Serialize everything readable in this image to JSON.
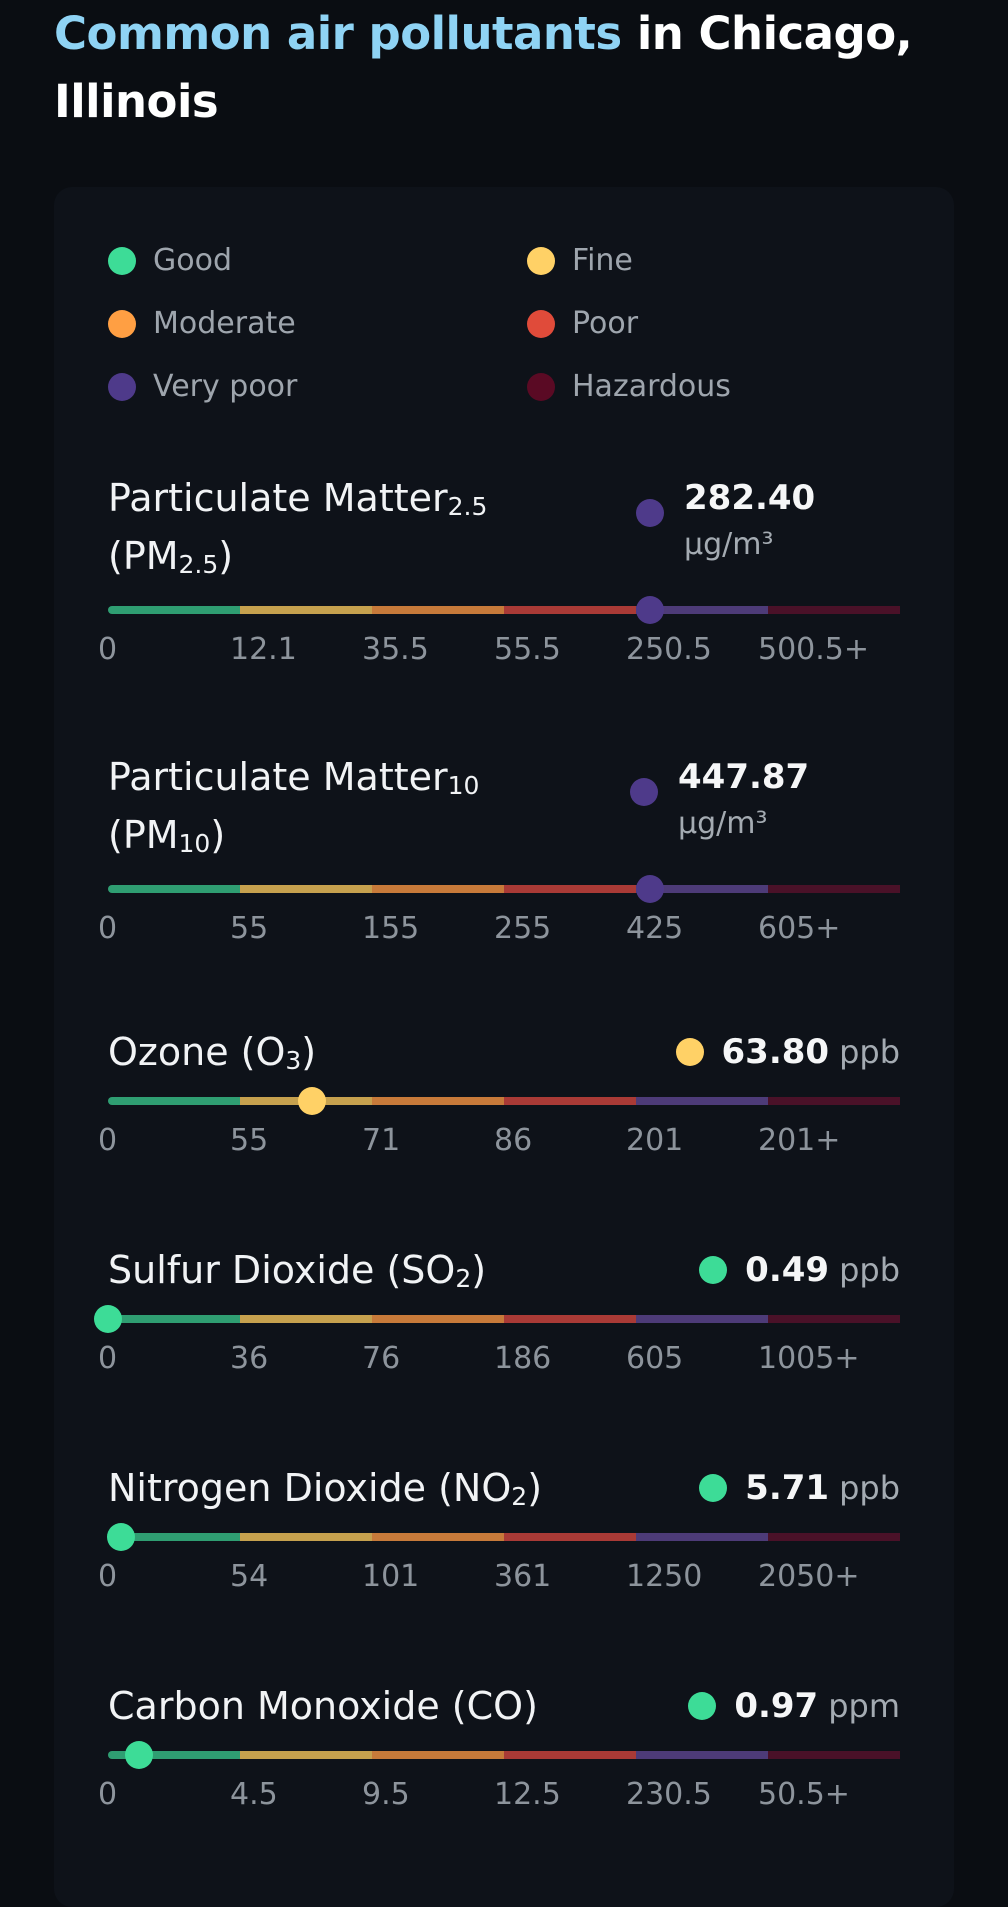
{
  "title": {
    "highlight": "Common air pollutants",
    "rest": " in Chicago, Illinois"
  },
  "colors": {
    "good": "#3ddc97",
    "fine": "#ffd166",
    "moderate": "#ff9f43",
    "poor": "#e04b3a",
    "very_poor": "#4e3a8a",
    "hazardous": "#5a0a24",
    "seg_good": "#2f9e72",
    "seg_fine": "#c6a14e",
    "seg_moderate": "#c77a3a",
    "seg_poor": "#a93a36",
    "seg_very_poor": "#4d3b78",
    "seg_hazardous": "#4a1128"
  },
  "legend": [
    {
      "label": "Good",
      "color": "#3ddc97"
    },
    {
      "label": "Fine",
      "color": "#ffd166"
    },
    {
      "label": "Moderate",
      "color": "#ff9f43"
    },
    {
      "label": "Poor",
      "color": "#e04b3a"
    },
    {
      "label": "Very poor",
      "color": "#4e3a8a"
    },
    {
      "label": "Hazardous",
      "color": "#5a0a24"
    }
  ],
  "pollutants": [
    {
      "name": "Particulate Matter",
      "sub": "2.5",
      "abbr": "(PM",
      "abbr_sub": "2.5",
      "abbr_end": ")",
      "value": "282.40",
      "unit": "µg/m³",
      "level_color": "#4e3a8a",
      "position_fraction": 0.684,
      "ticks": [
        "0",
        "12.1",
        "35.5",
        "55.5",
        "250.5",
        "500.5+"
      ]
    },
    {
      "name": "Particulate Matter",
      "sub": "10",
      "abbr": "(PM",
      "abbr_sub": "10",
      "abbr_end": ")",
      "value": "447.87",
      "unit": "µg/m³",
      "level_color": "#4e3a8a",
      "position_fraction": 0.684,
      "ticks": [
        "0",
        "55",
        "155",
        "255",
        "425",
        "605+"
      ]
    },
    {
      "name": "Ozone (O",
      "sub": "3",
      "name_end": ")",
      "value": "63.80",
      "unit": "ppb",
      "level_color": "#ffd166",
      "position_fraction": 0.257,
      "ticks": [
        "0",
        "55",
        "71",
        "86",
        "201",
        "201+"
      ]
    },
    {
      "name": "Sulfur Dioxide (SO",
      "sub": "2",
      "name_end": ")",
      "value": "0.49",
      "unit": "ppb",
      "level_color": "#3ddc97",
      "position_fraction": 0.0,
      "ticks": [
        "0",
        "36",
        "76",
        "186",
        "605",
        "1005+"
      ]
    },
    {
      "name": "Nitrogen Dioxide (NO",
      "sub": "2",
      "name_end": ")",
      "value": "5.71",
      "unit": "ppb",
      "level_color": "#3ddc97",
      "position_fraction": 0.016,
      "ticks": [
        "0",
        "54",
        "101",
        "361",
        "1250",
        "2050+"
      ]
    },
    {
      "name": "Carbon Monoxide (CO)",
      "value": "0.97",
      "unit": "ppm",
      "level_color": "#3ddc97",
      "position_fraction": 0.039,
      "ticks": [
        "0",
        "4.5",
        "9.5",
        "12.5",
        "230.5",
        "50.5+"
      ]
    }
  ]
}
